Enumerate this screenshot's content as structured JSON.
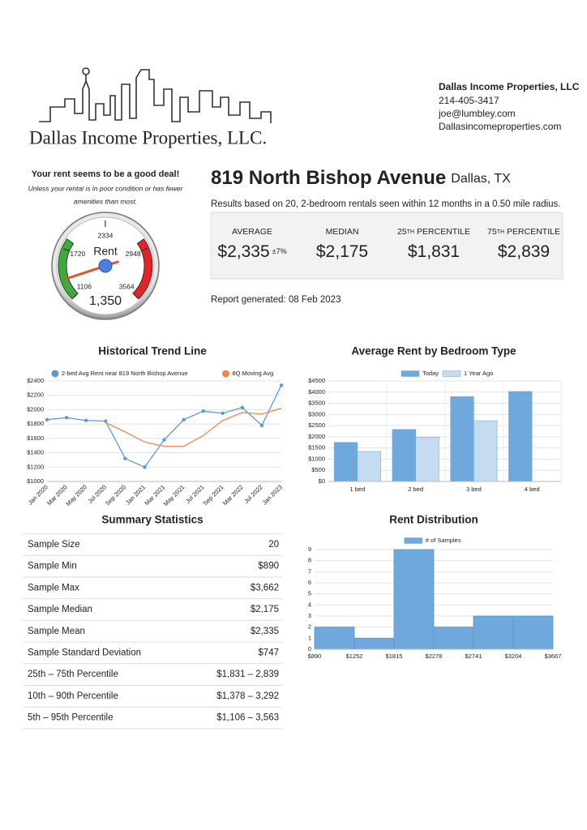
{
  "company": {
    "logo_text": "Dallas Income Properties, LLC.",
    "name": "Dallas Income Properties, LLC",
    "phone": "214-405-3417",
    "email": "joe@lumbley.com",
    "website": "Dallasincomeproperties.com"
  },
  "gauge": {
    "headline": "Your rent seems to be a good deal!",
    "note_line1": "Unless your rental is in poor condition or has fewer",
    "note_line2": "amenities than most.",
    "label": "Rent",
    "ticks": [
      1106,
      1720,
      2334,
      2948,
      3564
    ],
    "value": 1350,
    "value_label": "1,350"
  },
  "property": {
    "address": "819 North Bishop Avenue",
    "city": "Dallas, TX",
    "basis": "Results based on 20, 2-bedroom rentals seen within 12 months in a 0.50 mile radius.",
    "report_date": "Report generated: 08 Feb 2023"
  },
  "stats": [
    {
      "label": "AVERAGE",
      "value": "$2,335",
      "note": "±7%"
    },
    {
      "label": "MEDIAN",
      "value": "$2,175"
    },
    {
      "ordinal": "25",
      "suffix": "TH",
      "label": "PERCENTILE",
      "value": "$1,831"
    },
    {
      "ordinal": "75",
      "suffix": "TH",
      "label": "PERCENTILE",
      "value": "$2,839"
    }
  ],
  "summary": {
    "title": "Summary Statistics",
    "rows": [
      [
        "Sample Size",
        "20"
      ],
      [
        "Sample Min",
        "$890"
      ],
      [
        "Sample Max",
        "$3,662"
      ],
      [
        "Sample Median",
        "$2,175"
      ],
      [
        "Sample Mean",
        "$2,335"
      ],
      [
        "Sample Standard Deviation",
        "$747"
      ],
      [
        "25th – 75th Percentile",
        "$1,831 – 2,839"
      ],
      [
        "10th – 90th Percentile",
        "$1,378 – 3,292"
      ],
      [
        "5th – 95th Percentile",
        "$1,106 – 3,563"
      ]
    ]
  },
  "chart_data": [
    {
      "type": "line",
      "title": "Historical Trend Line",
      "categories": [
        "Jan 2020",
        "Mar 2020",
        "May 2020",
        "Jul 2020",
        "Sep 2020",
        "Jan 2021",
        "Mar 2021",
        "May 2021",
        "Jul 2021",
        "Sep 2021",
        "Mar 2022",
        "Jul 2022",
        "Jan 2023"
      ],
      "series": [
        {
          "name": "2-bed Avg Rent near 819 North Bishop Avenue",
          "color": "#5b9bd5",
          "values": [
            1860,
            1890,
            1850,
            1840,
            1320,
            1200,
            1580,
            1860,
            1980,
            1950,
            2030,
            1780,
            2340
          ]
        },
        {
          "name": "8Q Moving Avg",
          "color": "#ed8b4f",
          "values": [
            null,
            null,
            null,
            1820,
            1690,
            1550,
            1490,
            1490,
            1640,
            1850,
            1960,
            1940,
            2020
          ]
        }
      ],
      "ylim": [
        1000,
        2400
      ],
      "yticks": [
        {
          "value": 1000,
          "label": "$1000"
        },
        {
          "value": 1200,
          "label": "$1200"
        },
        {
          "value": 1400,
          "label": "$1400"
        },
        {
          "value": 1600,
          "label": "$1600"
        },
        {
          "value": 1800,
          "label": "$1800"
        },
        {
          "value": 2000,
          "label": "$2000"
        },
        {
          "value": 2200,
          "label": "$2200"
        },
        {
          "value": 2400,
          "label": "$2400"
        }
      ],
      "grid": true
    },
    {
      "type": "bar",
      "title": "Average Rent by Bedroom Type",
      "categories": [
        "1 bed",
        "2 bed",
        "3 bed",
        "4 bed"
      ],
      "series": [
        {
          "name": "Today",
          "color": "#6fa8dc",
          "values": [
            1750,
            2330,
            3800,
            4030
          ]
        },
        {
          "name": "1 Year Ago",
          "color": "#c4dbf1",
          "values": [
            1340,
            1980,
            2720,
            null
          ]
        }
      ],
      "ylim": [
        0,
        4500
      ],
      "yticks": [
        {
          "value": 0,
          "label": "$0"
        },
        {
          "value": 500,
          "label": "$500"
        },
        {
          "value": 1000,
          "label": "$1000"
        },
        {
          "value": 1500,
          "label": "$1500"
        },
        {
          "value": 2000,
          "label": "$2000"
        },
        {
          "value": 2500,
          "label": "$2500"
        },
        {
          "value": 3000,
          "label": "$3000"
        },
        {
          "value": 3500,
          "label": "$3500"
        },
        {
          "value": 4000,
          "label": "$4000"
        },
        {
          "value": 4500,
          "label": "$4500"
        }
      ],
      "grid": true
    },
    {
      "type": "histogram",
      "title": "Rent Distribution",
      "bins": [
        890,
        1252,
        1815,
        2278,
        2741,
        3204,
        3667
      ],
      "series": [
        {
          "name": "# of Samples",
          "color": "#6fa8dc",
          "values": [
            2,
            1,
            9,
            2,
            3,
            3
          ]
        }
      ],
      "xticks": [
        {
          "value": 890,
          "label": "$890"
        },
        {
          "value": 1252,
          "label": "$1252"
        },
        {
          "value": 1815,
          "label": "$1815"
        },
        {
          "value": 2278,
          "label": "$2278"
        },
        {
          "value": 2741,
          "label": "$2741"
        },
        {
          "value": 3204,
          "label": "$3204"
        },
        {
          "value": 3667,
          "label": "$3667"
        }
      ],
      "ylim": [
        0,
        9
      ],
      "yticks": [
        0,
        1,
        2,
        3,
        4,
        5,
        6,
        7,
        8,
        9
      ],
      "grid": true
    }
  ]
}
